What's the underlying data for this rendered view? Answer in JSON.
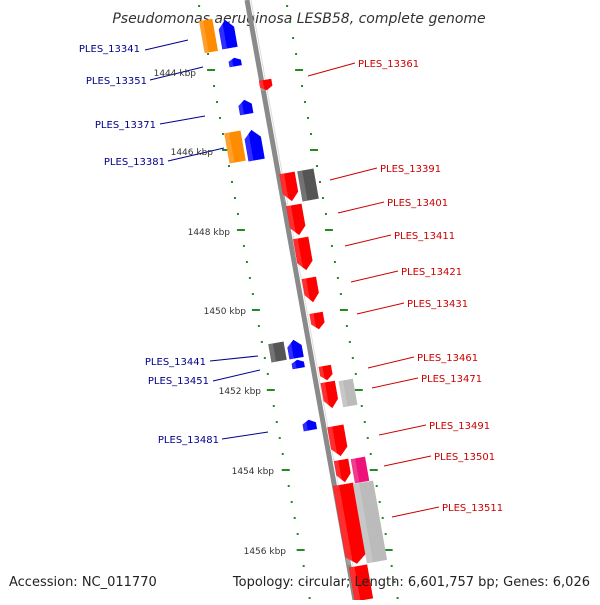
{
  "title": "Pseudomonas aeruginosa LESB58, complete genome",
  "footer": {
    "accession": "Accession: NC_011770",
    "topology": "Topology: circular; Length: 6,601,757 bp; Genes: 6,026"
  },
  "colors": {
    "backbone": "#8a8a8a",
    "tick": "#228b22",
    "forward_label": "#00008b",
    "reverse_label": "#cc0000",
    "orange": "#ff8c00",
    "blue": "#0000ff",
    "red": "#ff0000",
    "dark_gray": "#555555",
    "light_gray": "#bbbbbb",
    "magenta": "#ee1177"
  },
  "kbp_labels": [
    "1444 kbp",
    "1446 kbp",
    "1448 kbp",
    "1450 kbp",
    "1452 kbp",
    "1454 kbp",
    "1456 kbp"
  ],
  "forward_labels": [
    "PLES_13341",
    "PLES_13351",
    "PLES_13371",
    "PLES_13381",
    "PLES_13441",
    "PLES_13451",
    "PLES_13481"
  ],
  "reverse_labels": [
    "PLES_13361",
    "PLES_13391",
    "PLES_13401",
    "PLES_13411",
    "PLES_13421",
    "PLES_13431",
    "PLES_13461",
    "PLES_13471",
    "PLES_13491",
    "PLES_13501",
    "PLES_13511"
  ]
}
